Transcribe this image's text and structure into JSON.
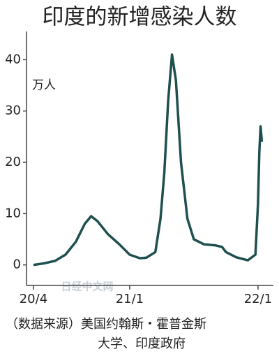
{
  "chart_data": {
    "type": "line",
    "title": "印度的新增感染人数",
    "unit": "万人",
    "x": [
      2020.25,
      2020.33,
      2020.42,
      2020.5,
      2020.58,
      2020.65,
      2020.7,
      2020.75,
      2020.83,
      2020.92,
      2021.0,
      2021.08,
      2021.13,
      2021.2,
      2021.24,
      2021.27,
      2021.3,
      2021.33,
      2021.36,
      2021.4,
      2021.45,
      2021.5,
      2021.58,
      2021.67,
      2021.72,
      2021.75,
      2021.83,
      2021.92,
      2021.98,
      2022.0,
      2022.01,
      2022.02,
      2022.03
    ],
    "series": [
      {
        "color": "#1f4f4f",
        "values": [
          0,
          0.3,
          0.8,
          2,
          4.5,
          8,
          9.5,
          8.5,
          6,
          4,
          2,
          1.3,
          1.4,
          2.5,
          9,
          18,
          32,
          41,
          36,
          20,
          9,
          5,
          4,
          3.8,
          3.5,
          2.5,
          1.5,
          0.9,
          2,
          12,
          22,
          27,
          24
        ]
      }
    ],
    "xlim": [
      2020.196,
      2022.12
    ],
    "xticks": [
      {
        "value": 2020.25,
        "label": "20/4"
      },
      {
        "value": 2021.0,
        "label": "21/1"
      },
      {
        "value": 2022.0,
        "label": "22/1"
      }
    ],
    "ylim": [
      -4,
      45.5
    ],
    "yticks": [
      0,
      10,
      20,
      30,
      40
    ],
    "watermark": "日经中文网",
    "source": [
      "（数据来源）美国约翰斯・霍普金斯",
      "大学、印度政府"
    ]
  }
}
